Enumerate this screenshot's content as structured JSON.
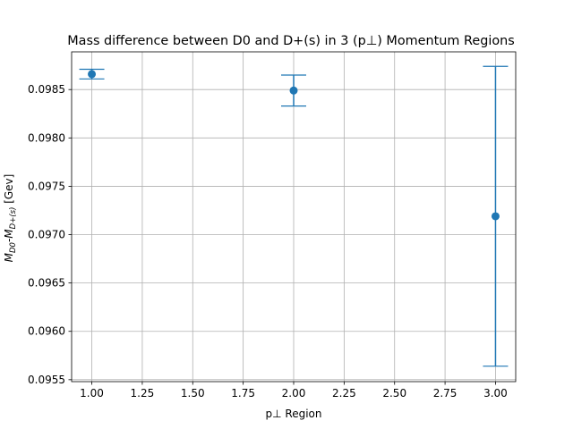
{
  "chart_data": {
    "type": "scatter",
    "title": "Mass difference between D0 and D+(s) in 3 (p⊥) Momentum Regions",
    "xlabel": "p⊥ Region",
    "ylabel": {
      "prefix": "M",
      "sub1": "D0",
      "mid": "-M",
      "sub2": "D+(s)",
      "suffix": " [Gev]"
    },
    "xlim": [
      0.9,
      3.1
    ],
    "ylim": [
      0.09548,
      0.09889
    ],
    "x_ticks": [
      "1.00",
      "1.25",
      "1.50",
      "1.75",
      "2.00",
      "2.25",
      "2.50",
      "2.75",
      "3.00"
    ],
    "y_ticks": [
      "0.0955",
      "0.0960",
      "0.0965",
      "0.0970",
      "0.0975",
      "0.0980",
      "0.0985"
    ],
    "grid": true,
    "series": [
      {
        "x": [
          1,
          2,
          3
        ],
        "y": [
          0.09866,
          0.09849,
          0.09719
        ],
        "yerr": [
          5e-05,
          0.00016,
          0.00155
        ],
        "color": "#1f77b4",
        "marker": "circle"
      }
    ]
  }
}
